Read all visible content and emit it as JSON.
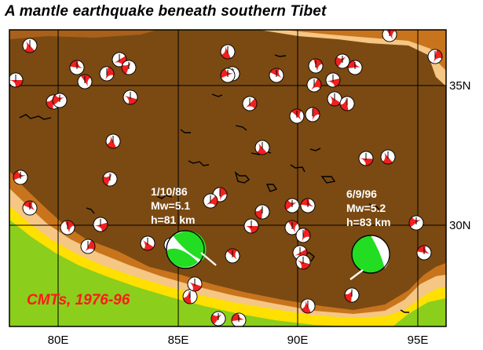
{
  "title": "A mantle earthquake beneath southern Tibet",
  "axes": {
    "x_ticks": [
      "80E",
      "85E",
      "90E",
      "95E"
    ],
    "y_ticks": [
      "35N",
      "30N"
    ]
  },
  "annotation": "CMTs, 1976-96",
  "events": [
    {
      "date": "1/10/86",
      "magnitude": "Mw=5.1",
      "depth": "h=81 km",
      "lon": 85.3,
      "lat": 29.1
    },
    {
      "date": "6/9/96",
      "magnitude": "Mw=5.2",
      "depth": "h=83 km",
      "lon": 93.1,
      "lat": 29.0
    }
  ],
  "colors": {
    "plateau": "#7a4a12",
    "terrain_mid": "#c8741c",
    "terrain_light": "#f5c684",
    "terrain_yellow": "#ffe000",
    "lowland_green": "#8cce1c",
    "beachball_compression": "#ee2020",
    "deep_event_compression": "#22dd22"
  }
}
